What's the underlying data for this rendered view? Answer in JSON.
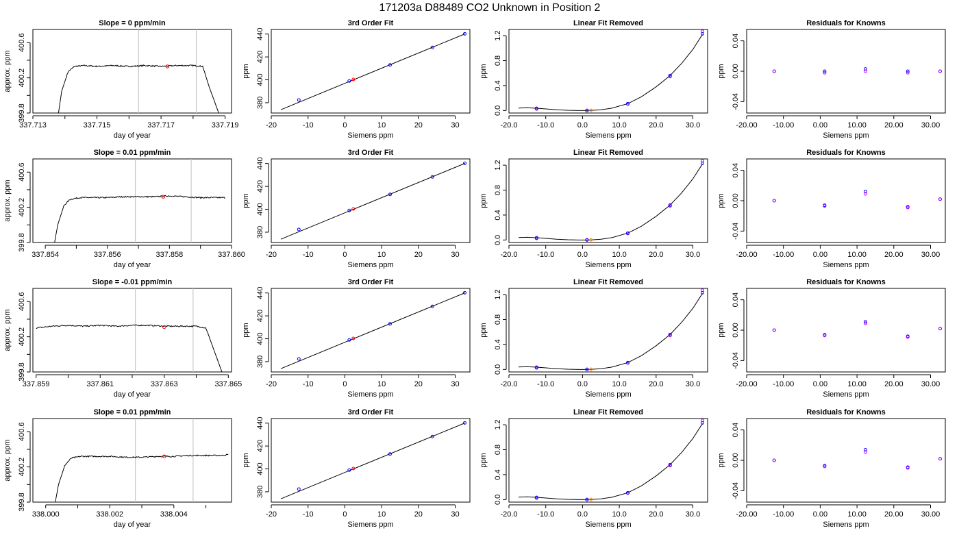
{
  "figure": {
    "title": "171203a     D88489   CO2 Unknown in Position  2"
  },
  "colors": {
    "background": "#ffffff",
    "known_points": "#0000ff",
    "unknown_points": "#ff0000",
    "unknown_points_alt": "#ff8c00",
    "residual_points_a": "#0000ff",
    "residual_points_b": "#b000ff",
    "window_lines": "#c8c8c8",
    "curve": "#000000"
  },
  "chart_data": [
    {
      "panel": "trace",
      "row": 0,
      "type": "line",
      "title": "Slope =  0  ppm/min",
      "xlabel": "day of year",
      "ylabel": "approx. ppm",
      "xlim": [
        337.713,
        337.7192
      ],
      "ylim": [
        399.8,
        400.75
      ],
      "xticks": [
        337.713,
        337.715,
        337.717,
        337.719
      ],
      "xminor": [
        337.714,
        337.716,
        337.718
      ],
      "yticks": [
        399.8,
        400.2,
        400.6
      ],
      "yminor": [
        400.0,
        400.4
      ],
      "x": [
        337.7138,
        337.7139,
        337.7141,
        337.7143,
        337.7146,
        337.715,
        337.7155,
        337.716,
        337.7165,
        337.717,
        337.7175,
        337.718,
        337.7183,
        337.7185,
        337.7188
      ],
      "y": [
        399.8,
        400.05,
        400.27,
        400.33,
        400.34,
        400.33,
        400.34,
        400.33,
        400.34,
        400.33,
        400.34,
        400.34,
        400.33,
        400.1,
        399.8
      ],
      "noise": 0.007,
      "window": [
        337.7163,
        337.7181
      ],
      "marker": {
        "x": 337.7172,
        "y": 400.33
      }
    },
    {
      "panel": "trace",
      "row": 1,
      "type": "line",
      "title": "Slope =  0.01  ppm/min",
      "xlabel": "day of year",
      "ylabel": "approx. ppm",
      "xlim": [
        337.8536,
        337.86
      ],
      "ylim": [
        399.8,
        400.75
      ],
      "xticks": [
        337.854,
        337.856,
        337.858,
        337.86
      ],
      "xminor": [
        337.855,
        337.857,
        337.859
      ],
      "yticks": [
        399.8,
        400.2,
        400.6
      ],
      "yminor": [
        400.0,
        400.4
      ],
      "x": [
        337.8543,
        337.8544,
        337.8546,
        337.8548,
        337.8551,
        337.8555,
        337.856,
        337.8565,
        337.857,
        337.8575,
        337.858,
        337.8585,
        337.859,
        337.8595,
        337.8598
      ],
      "y": [
        399.8,
        400.0,
        400.22,
        400.29,
        400.31,
        400.31,
        400.31,
        400.32,
        400.32,
        400.32,
        400.33,
        400.32,
        400.31,
        400.31,
        400.31
      ],
      "noise": 0.007,
      "window": [
        337.8569,
        337.8587
      ],
      "marker": {
        "x": 337.8578,
        "y": 400.32
      }
    },
    {
      "panel": "trace",
      "row": 2,
      "type": "line",
      "title": "Slope =  -0.01  ppm/min",
      "xlabel": "day of year",
      "ylabel": "approx. ppm",
      "xlim": [
        337.8589,
        337.8651
      ],
      "ylim": [
        399.8,
        400.75
      ],
      "xticks": [
        337.859,
        337.861,
        337.863,
        337.865
      ],
      "xminor": [
        337.86,
        337.862,
        337.864
      ],
      "yticks": [
        399.8,
        400.2,
        400.6
      ],
      "yminor": [
        400.0,
        400.4
      ],
      "x": [
        337.859,
        337.8595,
        337.86,
        337.8605,
        337.861,
        337.8615,
        337.862,
        337.8625,
        337.863,
        337.8635,
        337.864,
        337.8643,
        337.8645,
        337.8647,
        337.8648
      ],
      "y": [
        400.3,
        400.32,
        400.33,
        400.32,
        400.33,
        400.32,
        400.33,
        400.33,
        400.32,
        400.32,
        400.32,
        400.3,
        400.1,
        399.9,
        399.8
      ],
      "noise": 0.007,
      "window": [
        337.8621,
        337.8639
      ],
      "marker": {
        "x": 337.863,
        "y": 400.31
      }
    },
    {
      "panel": "trace",
      "row": 3,
      "type": "line",
      "title": "Slope =  0.01  ppm/min",
      "xlabel": "day of year",
      "ylabel": "approx. ppm",
      "xlim": [
        337.9996,
        338.0058
      ],
      "ylim": [
        399.8,
        400.75
      ],
      "xticks": [
        338.0,
        338.002,
        338.004
      ],
      "xminor": [
        338.001,
        338.003,
        338.005
      ],
      "yticks": [
        399.8,
        400.2,
        400.6
      ],
      "yminor": [
        400.0,
        400.4
      ],
      "x": [
        338.0003,
        338.0004,
        338.0006,
        338.0008,
        338.0011,
        338.0015,
        338.002,
        338.0025,
        338.003,
        338.0035,
        338.004,
        338.0045,
        338.005,
        338.0055,
        338.0057
      ],
      "y": [
        399.8,
        400.0,
        400.22,
        400.3,
        400.32,
        400.32,
        400.32,
        400.31,
        400.31,
        400.32,
        400.32,
        400.33,
        400.33,
        400.33,
        400.34
      ],
      "noise": 0.007,
      "window": [
        338.0028,
        338.0046
      ],
      "marker": {
        "x": 338.0037,
        "y": 400.32
      }
    },
    {
      "panel": "fit",
      "row": 0,
      "type": "scatter",
      "title": "3rd Order Fit",
      "xlabel": "Siemens ppm",
      "ylabel": "ppm",
      "xlim": [
        -20,
        34
      ],
      "ylim": [
        371,
        444
      ],
      "xticks": [
        -20,
        -10,
        0,
        10,
        20,
        30
      ],
      "yticks": [
        380,
        400,
        420,
        440
      ],
      "line": {
        "x": [
          -17.4,
          32.7
        ],
        "y": [
          373.9,
          440.2
        ]
      },
      "known_x": [
        -12.5,
        1.2,
        12.3,
        23.8,
        32.6
      ],
      "known_y": [
        382.4,
        399.0,
        413.0,
        428.3,
        440.2
      ],
      "unknown_x": [
        2.3
      ],
      "unknown_y": [
        400.3
      ]
    },
    {
      "panel": "fit",
      "row": 1,
      "type": "scatter",
      "title": "3rd Order Fit",
      "xlabel": "Siemens ppm",
      "ylabel": "ppm",
      "xlim": [
        -20,
        34
      ],
      "ylim": [
        371,
        444
      ],
      "xticks": [
        -20,
        -10,
        0,
        10,
        20,
        30
      ],
      "yticks": [
        380,
        400,
        420,
        440
      ],
      "line": {
        "x": [
          -17.4,
          32.7
        ],
        "y": [
          373.9,
          440.2
        ]
      },
      "known_x": [
        -12.5,
        1.2,
        12.3,
        23.8,
        32.6
      ],
      "known_y": [
        382.4,
        399.0,
        413.0,
        428.3,
        440.2
      ],
      "unknown_x": [
        2.3
      ],
      "unknown_y": [
        400.3
      ]
    },
    {
      "panel": "fit",
      "row": 2,
      "type": "scatter",
      "title": "3rd Order Fit",
      "xlabel": "Siemens ppm",
      "ylabel": "ppm",
      "xlim": [
        -20,
        34
      ],
      "ylim": [
        371,
        444
      ],
      "xticks": [
        -20,
        -10,
        0,
        10,
        20,
        30
      ],
      "yticks": [
        380,
        400,
        420,
        440
      ],
      "line": {
        "x": [
          -17.4,
          32.7
        ],
        "y": [
          373.9,
          440.2
        ]
      },
      "known_x": [
        -12.5,
        1.2,
        12.3,
        23.8,
        32.6
      ],
      "known_y": [
        382.4,
        399.0,
        413.0,
        428.3,
        440.2
      ],
      "unknown_x": [
        2.3
      ],
      "unknown_y": [
        400.3
      ]
    },
    {
      "panel": "fit",
      "row": 3,
      "type": "scatter",
      "title": "3rd Order Fit",
      "xlabel": "Siemens ppm",
      "ylabel": "ppm",
      "xlim": [
        -20,
        34
      ],
      "ylim": [
        371,
        444
      ],
      "xticks": [
        -20,
        -10,
        0,
        10,
        20,
        30
      ],
      "yticks": [
        380,
        400,
        420,
        440
      ],
      "line": {
        "x": [
          -17.4,
          32.7
        ],
        "y": [
          373.9,
          440.2
        ]
      },
      "known_x": [
        -12.5,
        1.2,
        12.3,
        23.8,
        32.6
      ],
      "known_y": [
        382.4,
        399.0,
        413.0,
        428.3,
        440.2
      ],
      "unknown_x": [
        2.3
      ],
      "unknown_y": [
        400.3
      ]
    },
    {
      "panel": "linear_removed",
      "row": 0,
      "type": "scatter",
      "title": "Linear Fit Removed",
      "xlabel": "Siemens ppm",
      "ylabel": "ppm",
      "xlim": [
        -20,
        34
      ],
      "ylim": [
        -0.04,
        1.3
      ],
      "xticks": [
        -20,
        -10,
        0,
        10,
        20,
        30
      ],
      "yticks": [
        0.0,
        0.4,
        0.8,
        1.2
      ],
      "curve": {
        "x": [
          -17.4,
          -15,
          -12.5,
          -10,
          -7,
          -4,
          -1,
          1,
          2.5,
          5,
          8,
          12.3,
          16,
          20,
          23.8,
          27,
          30,
          32.6
        ],
        "y": [
          0.04,
          0.043,
          0.037,
          0.026,
          0.013,
          0.004,
          0.0,
          0.0,
          0.003,
          0.013,
          0.038,
          0.11,
          0.22,
          0.38,
          0.56,
          0.76,
          0.98,
          1.22
        ]
      },
      "known_x": [
        -12.5,
        1.2,
        12.3,
        23.8,
        32.6
      ],
      "known_y": [
        0.035,
        0.0,
        0.11,
        0.56,
        1.23
      ],
      "known_y2": [
        0.025,
        0.003,
        0.105,
        0.545,
        1.27
      ],
      "unknown_x": [
        2.3
      ],
      "unknown_y": [
        0.003
      ]
    },
    {
      "panel": "linear_removed",
      "row": 1,
      "type": "scatter",
      "title": "Linear Fit Removed",
      "xlabel": "Siemens ppm",
      "ylabel": "ppm",
      "xlim": [
        -20,
        34
      ],
      "ylim": [
        -0.04,
        1.3
      ],
      "xticks": [
        -20,
        -10,
        0,
        10,
        20,
        30
      ],
      "yticks": [
        0.0,
        0.4,
        0.8,
        1.2
      ],
      "curve": {
        "x": [
          -17.4,
          -15,
          -12.5,
          -10,
          -7,
          -4,
          -1,
          1,
          2.5,
          5,
          8,
          12.3,
          16,
          20,
          23.8,
          27,
          30,
          32.6
        ],
        "y": [
          0.04,
          0.043,
          0.037,
          0.026,
          0.013,
          0.004,
          0.0,
          0.0,
          0.003,
          0.013,
          0.038,
          0.11,
          0.22,
          0.38,
          0.56,
          0.76,
          0.98,
          1.22
        ]
      },
      "known_x": [
        -12.5,
        1.2,
        12.3,
        23.8,
        32.6
      ],
      "known_y": [
        0.035,
        0.0,
        0.11,
        0.56,
        1.23
      ],
      "known_y2": [
        0.025,
        0.003,
        0.105,
        0.545,
        1.27
      ],
      "unknown_x": [
        2.3
      ],
      "unknown_y": [
        0.003
      ]
    },
    {
      "panel": "linear_removed",
      "row": 2,
      "type": "scatter",
      "title": "Linear Fit Removed",
      "xlabel": "Siemens ppm",
      "ylabel": "ppm",
      "xlim": [
        -20,
        34
      ],
      "ylim": [
        -0.04,
        1.3
      ],
      "xticks": [
        -20,
        -10,
        0,
        10,
        20,
        30
      ],
      "yticks": [
        0.0,
        0.4,
        0.8,
        1.2
      ],
      "curve": {
        "x": [
          -17.4,
          -15,
          -12.5,
          -10,
          -7,
          -4,
          -1,
          1,
          2.5,
          5,
          8,
          12.3,
          16,
          20,
          23.8,
          27,
          30,
          32.6
        ],
        "y": [
          0.04,
          0.043,
          0.037,
          0.026,
          0.013,
          0.004,
          0.0,
          0.0,
          0.003,
          0.013,
          0.038,
          0.11,
          0.22,
          0.38,
          0.56,
          0.76,
          0.98,
          1.22
        ]
      },
      "known_x": [
        -12.5,
        1.2,
        12.3,
        23.8,
        32.6
      ],
      "known_y": [
        0.035,
        0.0,
        0.11,
        0.56,
        1.23
      ],
      "known_y2": [
        0.025,
        0.003,
        0.105,
        0.545,
        1.27
      ],
      "unknown_x": [
        2.3
      ],
      "unknown_y": [
        0.003
      ]
    },
    {
      "panel": "linear_removed",
      "row": 3,
      "type": "scatter",
      "title": "Linear Fit Removed",
      "xlabel": "Siemens ppm",
      "ylabel": "ppm",
      "xlim": [
        -20,
        34
      ],
      "ylim": [
        -0.04,
        1.3
      ],
      "xticks": [
        -20,
        -10,
        0,
        10,
        20,
        30
      ],
      "yticks": [
        0.0,
        0.4,
        0.8,
        1.2
      ],
      "curve": {
        "x": [
          -17.4,
          -15,
          -12.5,
          -10,
          -7,
          -4,
          -1,
          1,
          2.5,
          5,
          8,
          12.3,
          16,
          20,
          23.8,
          27,
          30,
          32.6
        ],
        "y": [
          0.04,
          0.043,
          0.037,
          0.026,
          0.013,
          0.004,
          0.0,
          0.0,
          0.003,
          0.013,
          0.038,
          0.11,
          0.22,
          0.38,
          0.56,
          0.76,
          0.98,
          1.22
        ]
      },
      "known_x": [
        -12.5,
        1.2,
        12.3,
        23.8,
        32.6
      ],
      "known_y": [
        0.035,
        0.0,
        0.11,
        0.56,
        1.23
      ],
      "known_y2": [
        0.025,
        0.003,
        0.105,
        0.545,
        1.27
      ],
      "unknown_x": [
        2.3
      ],
      "unknown_y": [
        0.003
      ]
    },
    {
      "panel": "residuals",
      "row": 0,
      "type": "scatter",
      "title": "Residuals for Knowns",
      "xlabel": "Siemens ppm",
      "ylabel": "ppm",
      "xlim": [
        -20,
        34
      ],
      "ylim": [
        -0.055,
        0.055
      ],
      "xticks": [
        -20,
        -10,
        0,
        10,
        20,
        30
      ],
      "yticks": [
        -0.04,
        0.0,
        0.04
      ],
      "x": [
        -12.5,
        1.2,
        12.3,
        23.8,
        32.6
      ],
      "y_a": [
        0.0,
        0.0,
        0.003,
        0.0,
        0.0
      ],
      "y_b": [
        0.0,
        -0.002,
        0.0,
        -0.002,
        0.0
      ]
    },
    {
      "panel": "residuals",
      "row": 1,
      "type": "scatter",
      "title": "Residuals for Knowns",
      "xlabel": "Siemens ppm",
      "ylabel": "ppm",
      "xlim": [
        -20,
        34
      ],
      "ylim": [
        -0.055,
        0.055
      ],
      "xticks": [
        -20,
        -10,
        0,
        10,
        20,
        30
      ],
      "yticks": [
        -0.04,
        0.0,
        0.04
      ],
      "x": [
        -12.5,
        1.2,
        12.3,
        23.8,
        32.6
      ],
      "y_a": [
        0.0,
        -0.006,
        0.012,
        -0.008,
        0.002
      ],
      "y_b": [
        0.0,
        -0.007,
        0.009,
        -0.009,
        0.002
      ]
    },
    {
      "panel": "residuals",
      "row": 2,
      "type": "scatter",
      "title": "Residuals for Knowns",
      "xlabel": "Siemens ppm",
      "ylabel": "ppm",
      "xlim": [
        -20,
        34
      ],
      "ylim": [
        -0.055,
        0.055
      ],
      "xticks": [
        -20,
        -10,
        0,
        10,
        20,
        30
      ],
      "yticks": [
        -0.04,
        0.0,
        0.04
      ],
      "x": [
        -12.5,
        1.2,
        12.3,
        23.8,
        32.6
      ],
      "y_a": [
        0.0,
        -0.006,
        0.011,
        -0.008,
        0.002
      ],
      "y_b": [
        0.0,
        -0.007,
        0.009,
        -0.009,
        0.002
      ]
    },
    {
      "panel": "residuals",
      "row": 3,
      "type": "scatter",
      "title": "Residuals for Knowns",
      "xlabel": "Siemens ppm",
      "ylabel": "ppm",
      "xlim": [
        -20,
        34
      ],
      "ylim": [
        -0.055,
        0.055
      ],
      "xticks": [
        -20,
        -10,
        0,
        10,
        20,
        30
      ],
      "yticks": [
        -0.04,
        0.0,
        0.04
      ],
      "x": [
        -12.5,
        1.2,
        12.3,
        23.8,
        32.6
      ],
      "y_a": [
        0.0,
        -0.007,
        0.014,
        -0.009,
        0.002
      ],
      "y_b": [
        0.0,
        -0.008,
        0.011,
        -0.01,
        0.002
      ]
    }
  ]
}
